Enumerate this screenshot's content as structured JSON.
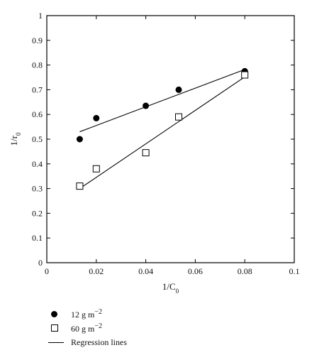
{
  "chart_data": {
    "type": "scatter",
    "xlabel": "1/C0",
    "xlabel_main": "1/C",
    "xlabel_sub": "0",
    "ylabel": "1/r0",
    "ylabel_main": "1/r",
    "ylabel_sub": "0",
    "xlim": [
      0,
      0.1
    ],
    "ylim": [
      0,
      1
    ],
    "x_ticks": [
      0,
      0.02,
      0.04,
      0.06,
      0.08,
      0.1
    ],
    "x_tick_labels": [
      "0",
      "0.02",
      "0.04",
      "0.06",
      "0.08",
      "0.1"
    ],
    "y_ticks": [
      0,
      0.1,
      0.2,
      0.3,
      0.4,
      0.5,
      0.6,
      0.7,
      0.8,
      0.9,
      1
    ],
    "y_tick_labels": [
      "0",
      "0.1",
      "0.2",
      "0.3",
      "0.4",
      "0.5",
      "0.6",
      "0.7",
      "0.8",
      "0.9",
      "1"
    ],
    "grid": false,
    "legend_position": "below",
    "series": [
      {
        "name": "12 g m−2",
        "marker": "filled-circle",
        "x": [
          0.0133,
          0.02,
          0.04,
          0.0533,
          0.08
        ],
        "y": [
          0.5,
          0.585,
          0.635,
          0.7,
          0.775
        ],
        "regression": {
          "x": [
            0.0133,
            0.08
          ],
          "y": [
            0.53,
            0.782
          ]
        }
      },
      {
        "name": "60 g m−2",
        "marker": "open-square",
        "x": [
          0.0133,
          0.02,
          0.04,
          0.0533,
          0.08
        ],
        "y": [
          0.31,
          0.38,
          0.445,
          0.59,
          0.76
        ],
        "regression": {
          "x": [
            0.0133,
            0.08
          ],
          "y": [
            0.3,
            0.752
          ]
        }
      }
    ],
    "legend": [
      {
        "label": "12 g m−2",
        "main": "12 g m",
        "sup": "−2",
        "symbol": "filled-circle"
      },
      {
        "label": "60 g m−2",
        "main": "60 g m",
        "sup": "−2",
        "symbol": "open-square"
      },
      {
        "label": "Regression lines",
        "symbol": "line"
      }
    ]
  }
}
